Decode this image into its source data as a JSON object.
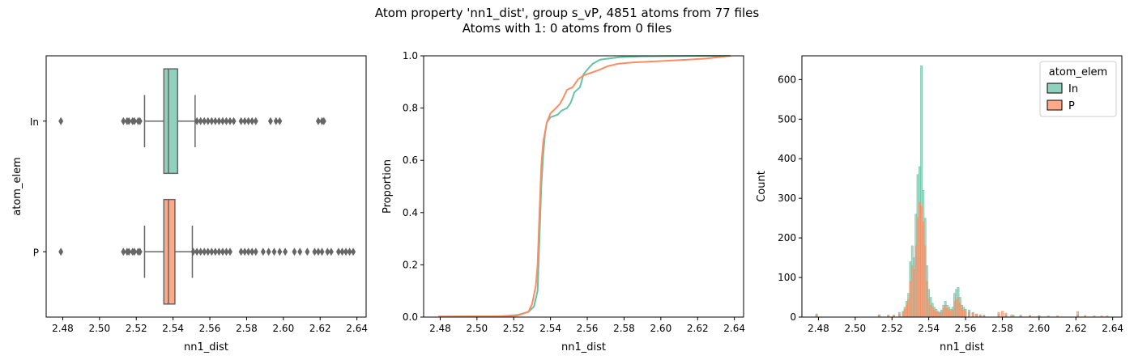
{
  "figure": {
    "title_line1": "Atom property 'nn1_dist', group s_vP, 4851 atoms from 77 files",
    "title_line2": "Atoms with 1: 0 atoms from 0 files"
  },
  "colors": {
    "In": "#66c2a5",
    "P": "#fc8d62",
    "In_light": "#8fd1bd",
    "P_light": "#fcaa88",
    "box_edge": "#666666"
  },
  "chart_data": [
    {
      "type": "boxplot",
      "orientation": "horizontal",
      "xlabel": "nn1_dist",
      "ylabel": "atom_elem",
      "xlim": [
        2.471,
        2.645
      ],
      "xticks": [
        "2.48",
        "2.50",
        "2.52",
        "2.54",
        "2.56",
        "2.58",
        "2.60",
        "2.62",
        "2.64"
      ],
      "categories": [
        "In",
        "P"
      ],
      "boxes": [
        {
          "name": "In",
          "whisker_low": 2.5245,
          "q1": 2.535,
          "median": 2.5375,
          "q3": 2.5425,
          "whisker_high": 2.552,
          "outliers": [
            2.479,
            2.513,
            2.515,
            2.516,
            2.518,
            2.519,
            2.521,
            2.522,
            2.553,
            2.555,
            2.557,
            2.559,
            2.561,
            2.563,
            2.565,
            2.567,
            2.569,
            2.571,
            2.573,
            2.577,
            2.579,
            2.581,
            2.583,
            2.585,
            2.593,
            2.596,
            2.598,
            2.619,
            2.621,
            2.622
          ]
        },
        {
          "name": "P",
          "whisker_low": 2.5245,
          "q1": 2.535,
          "median": 2.5375,
          "q3": 2.541,
          "whisker_high": 2.5505,
          "outliers": [
            2.479,
            2.513,
            2.515,
            2.516,
            2.518,
            2.519,
            2.521,
            2.522,
            2.551,
            2.553,
            2.555,
            2.557,
            2.559,
            2.561,
            2.563,
            2.565,
            2.567,
            2.569,
            2.571,
            2.577,
            2.579,
            2.581,
            2.583,
            2.585,
            2.589,
            2.592,
            2.595,
            2.598,
            2.601,
            2.606,
            2.609,
            2.613,
            2.617,
            2.619,
            2.621,
            2.624,
            2.626,
            2.63,
            2.632,
            2.634,
            2.636,
            2.638
          ]
        }
      ]
    },
    {
      "type": "line",
      "subtype": "ecdf",
      "xlabel": "nn1_dist",
      "ylabel": "Proportion",
      "xlim": [
        2.471,
        2.645
      ],
      "ylim": [
        0,
        1
      ],
      "xticks": [
        "2.48",
        "2.50",
        "2.52",
        "2.54",
        "2.56",
        "2.58",
        "2.60",
        "2.62",
        "2.64"
      ],
      "yticks": [
        "0.0",
        "0.2",
        "0.4",
        "0.6",
        "0.8",
        "1.0"
      ],
      "series": [
        {
          "name": "In",
          "points": [
            [
              2.479,
              0.002
            ],
            [
              2.513,
              0.003
            ],
            [
              2.522,
              0.008
            ],
            [
              2.528,
              0.02
            ],
            [
              2.531,
              0.04
            ],
            [
              2.533,
              0.1
            ],
            [
              2.534,
              0.3
            ],
            [
              2.535,
              0.5
            ],
            [
              2.536,
              0.62
            ],
            [
              2.537,
              0.7
            ],
            [
              2.538,
              0.745
            ],
            [
              2.54,
              0.765
            ],
            [
              2.544,
              0.775
            ],
            [
              2.546,
              0.79
            ],
            [
              2.549,
              0.8
            ],
            [
              2.551,
              0.82
            ],
            [
              2.553,
              0.86
            ],
            [
              2.556,
              0.88
            ],
            [
              2.558,
              0.93
            ],
            [
              2.561,
              0.955
            ],
            [
              2.563,
              0.97
            ],
            [
              2.567,
              0.985
            ],
            [
              2.572,
              0.99
            ],
            [
              2.578,
              0.995
            ],
            [
              2.59,
              0.998
            ],
            [
              2.623,
              1.0
            ],
            [
              2.638,
              1.0
            ]
          ]
        },
        {
          "name": "P",
          "points": [
            [
              2.479,
              0.002
            ],
            [
              2.513,
              0.003
            ],
            [
              2.522,
              0.006
            ],
            [
              2.528,
              0.02
            ],
            [
              2.53,
              0.05
            ],
            [
              2.532,
              0.12
            ],
            [
              2.533,
              0.2
            ],
            [
              2.534,
              0.4
            ],
            [
              2.535,
              0.58
            ],
            [
              2.536,
              0.67
            ],
            [
              2.538,
              0.745
            ],
            [
              2.54,
              0.78
            ],
            [
              2.543,
              0.8
            ],
            [
              2.545,
              0.815
            ],
            [
              2.547,
              0.84
            ],
            [
              2.549,
              0.87
            ],
            [
              2.552,
              0.88
            ],
            [
              2.555,
              0.91
            ],
            [
              2.558,
              0.925
            ],
            [
              2.562,
              0.935
            ],
            [
              2.566,
              0.945
            ],
            [
              2.571,
              0.96
            ],
            [
              2.577,
              0.97
            ],
            [
              2.585,
              0.975
            ],
            [
              2.6,
              0.98
            ],
            [
              2.615,
              0.985
            ],
            [
              2.625,
              0.99
            ],
            [
              2.638,
              1.0
            ]
          ]
        }
      ]
    },
    {
      "type": "histogram",
      "xlabel": "nn1_dist",
      "ylabel": "Count",
      "xlim": [
        2.471,
        2.645
      ],
      "ylim": [
        0,
        660
      ],
      "xticks": [
        "2.48",
        "2.50",
        "2.52",
        "2.54",
        "2.56",
        "2.58",
        "2.60",
        "2.62",
        "2.64"
      ],
      "yticks": [
        "0",
        "100",
        "200",
        "300",
        "400",
        "500",
        "600"
      ],
      "legend": {
        "title": "atom_elem",
        "entries": [
          "In",
          "P"
        ],
        "position": "upper right"
      },
      "series": [
        {
          "name": "In",
          "bins": [
            [
              2.479,
              8
            ],
            [
              2.513,
              6
            ],
            [
              2.518,
              5
            ],
            [
              2.521,
              5
            ],
            [
              2.524,
              12
            ],
            [
              2.526,
              15
            ],
            [
              2.527,
              25
            ],
            [
              2.528,
              40
            ],
            [
              2.529,
              60
            ],
            [
              2.53,
              140
            ],
            [
              2.531,
              180
            ],
            [
              2.532,
              150
            ],
            [
              2.533,
              260
            ],
            [
              2.534,
              360
            ],
            [
              2.535,
              380
            ],
            [
              2.536,
              635
            ],
            [
              2.537,
              320
            ],
            [
              2.538,
              250
            ],
            [
              2.539,
              130
            ],
            [
              2.54,
              70
            ],
            [
              2.541,
              50
            ],
            [
              2.542,
              35
            ],
            [
              2.543,
              25
            ],
            [
              2.544,
              20
            ],
            [
              2.545,
              15
            ],
            [
              2.546,
              12
            ],
            [
              2.547,
              18
            ],
            [
              2.548,
              30
            ],
            [
              2.549,
              40
            ],
            [
              2.55,
              30
            ],
            [
              2.551,
              25
            ],
            [
              2.552,
              20
            ],
            [
              2.553,
              25
            ],
            [
              2.554,
              60
            ],
            [
              2.555,
              70
            ],
            [
              2.556,
              75
            ],
            [
              2.557,
              50
            ],
            [
              2.558,
              30
            ],
            [
              2.559,
              25
            ],
            [
              2.56,
              20
            ],
            [
              2.562,
              18
            ],
            [
              2.564,
              12
            ],
            [
              2.566,
              8
            ],
            [
              2.568,
              6
            ],
            [
              2.57,
              5
            ],
            [
              2.578,
              8
            ],
            [
              2.582,
              6
            ],
            [
              2.586,
              5
            ],
            [
              2.59,
              4
            ],
            [
              2.595,
              3
            ],
            [
              2.6,
              3
            ],
            [
              2.621,
              6
            ]
          ]
        },
        {
          "name": "P",
          "bins": [
            [
              2.479,
              6
            ],
            [
              2.513,
              5
            ],
            [
              2.518,
              4
            ],
            [
              2.521,
              4
            ],
            [
              2.524,
              8
            ],
            [
              2.526,
              12
            ],
            [
              2.527,
              20
            ],
            [
              2.528,
              30
            ],
            [
              2.529,
              45
            ],
            [
              2.53,
              90
            ],
            [
              2.531,
              130
            ],
            [
              2.532,
              120
            ],
            [
              2.533,
              180
            ],
            [
              2.534,
              250
            ],
            [
              2.535,
              290
            ],
            [
              2.536,
              280
            ],
            [
              2.537,
              240
            ],
            [
              2.538,
              180
            ],
            [
              2.539,
              90
            ],
            [
              2.54,
              45
            ],
            [
              2.541,
              30
            ],
            [
              2.542,
              25
            ],
            [
              2.543,
              18
            ],
            [
              2.544,
              14
            ],
            [
              2.545,
              12
            ],
            [
              2.546,
              10
            ],
            [
              2.547,
              14
            ],
            [
              2.548,
              22
            ],
            [
              2.549,
              30
            ],
            [
              2.55,
              22
            ],
            [
              2.551,
              18
            ],
            [
              2.552,
              15
            ],
            [
              2.553,
              18
            ],
            [
              2.554,
              40
            ],
            [
              2.555,
              45
            ],
            [
              2.556,
              50
            ],
            [
              2.557,
              35
            ],
            [
              2.558,
              22
            ],
            [
              2.559,
              18
            ],
            [
              2.56,
              15
            ],
            [
              2.562,
              12
            ],
            [
              2.564,
              10
            ],
            [
              2.566,
              7
            ],
            [
              2.568,
              5
            ],
            [
              2.57,
              4
            ],
            [
              2.578,
              12
            ],
            [
              2.58,
              15
            ],
            [
              2.582,
              10
            ],
            [
              2.585,
              6
            ],
            [
              2.59,
              5
            ],
            [
              2.595,
              4
            ],
            [
              2.6,
              4
            ],
            [
              2.605,
              3
            ],
            [
              2.61,
              3
            ],
            [
              2.621,
              14
            ],
            [
              2.625,
              4
            ],
            [
              2.63,
              3
            ],
            [
              2.634,
              3
            ],
            [
              2.637,
              3
            ]
          ]
        }
      ]
    }
  ]
}
